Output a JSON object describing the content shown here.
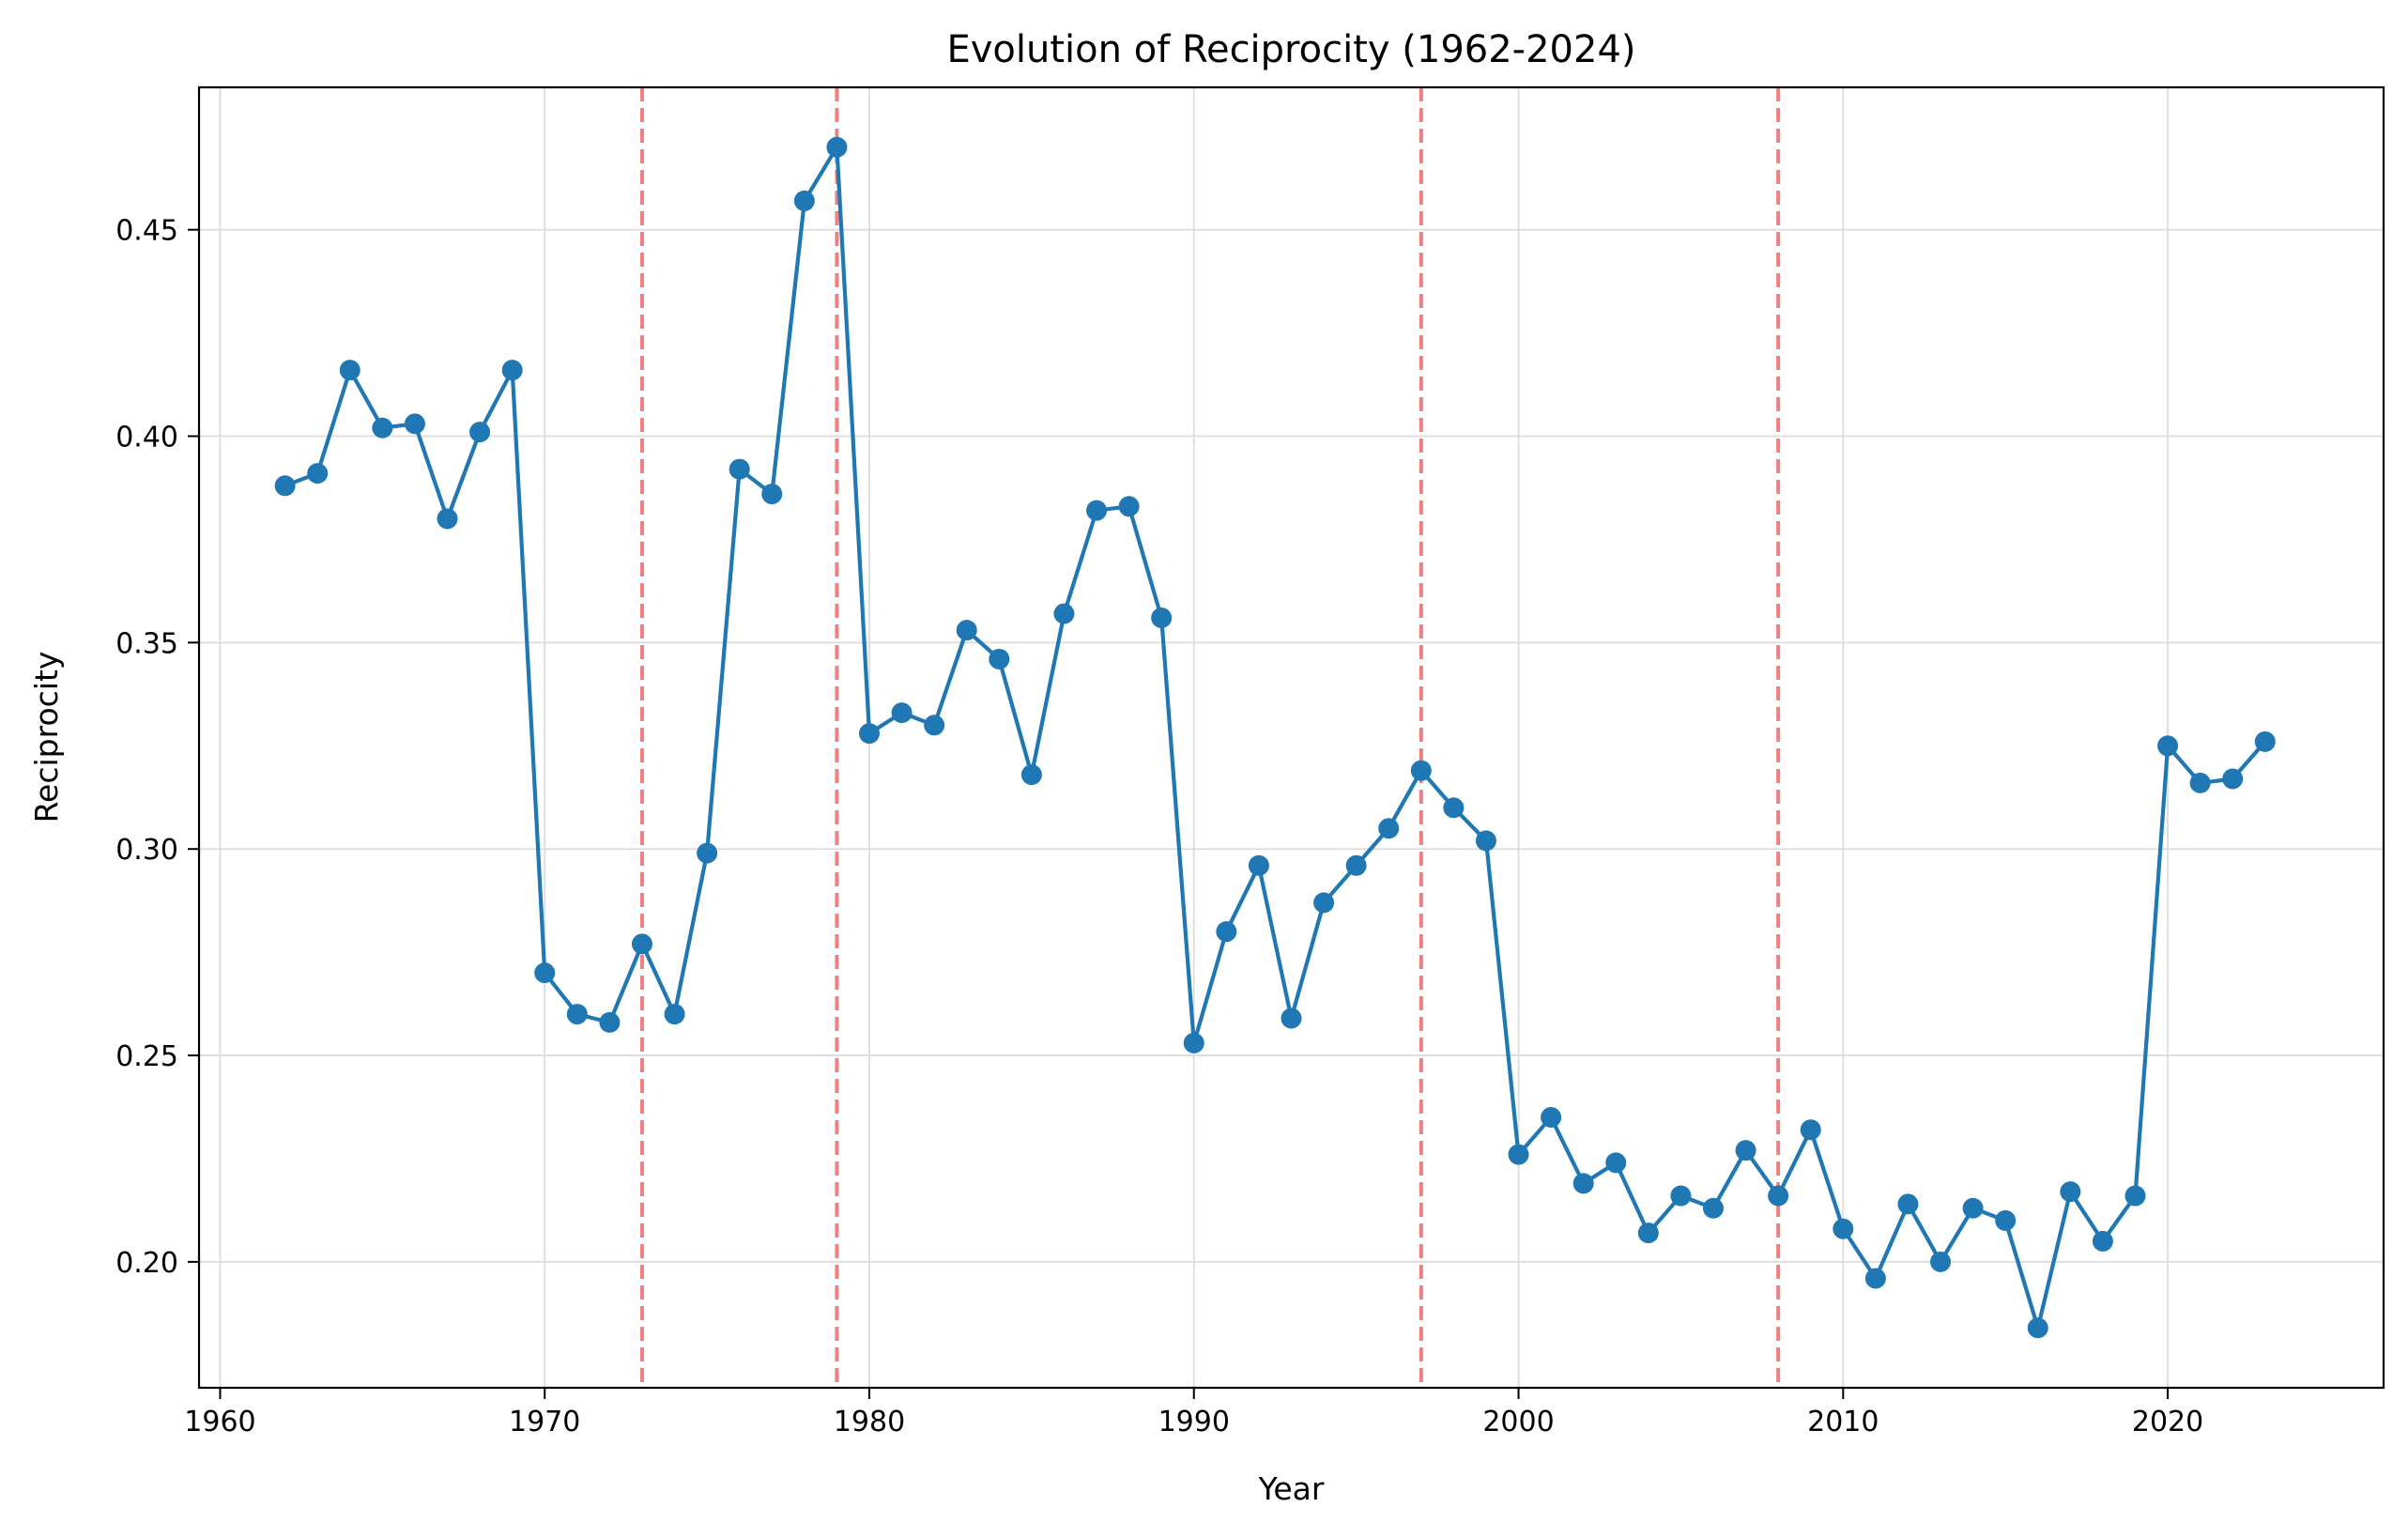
{
  "chart_data": {
    "type": "line",
    "title": "Evolution of Reciprocity (1962-2024)",
    "xlabel": "Year",
    "ylabel": "Reciprocity",
    "xlim": [
      1959.35,
      2026.65
    ],
    "ylim": [
      0.1695,
      0.4845
    ],
    "x_ticks": [
      1960,
      1970,
      1980,
      1990,
      2000,
      2010,
      2020
    ],
    "y_ticks": [
      0.2,
      0.25,
      0.3,
      0.35,
      0.4,
      0.45
    ],
    "x_tick_labels": [
      "1960",
      "1970",
      "1980",
      "1990",
      "2000",
      "2010",
      "2020"
    ],
    "y_tick_labels": [
      "0.20",
      "0.25",
      "0.30",
      "0.35",
      "0.40",
      "0.45"
    ],
    "grid": true,
    "line_color": "#1f77b4",
    "reference_line_color": "#f08080",
    "reference_lines_x": [
      1973,
      1979,
      1997,
      2008
    ],
    "series": [
      {
        "x": [
          1962,
          1963,
          1964,
          1965,
          1966,
          1967,
          1968,
          1969,
          1970,
          1971,
          1972,
          1973,
          1974,
          1975,
          1976,
          1977,
          1978,
          1979,
          1980,
          1981,
          1982,
          1983,
          1984,
          1985,
          1986,
          1987,
          1988,
          1989,
          1990,
          1991,
          1992,
          1993,
          1994,
          1995,
          1996,
          1997,
          1998,
          1999,
          2000,
          2001,
          2002,
          2003,
          2004,
          2005,
          2006,
          2007,
          2008,
          2009,
          2010,
          2011,
          2012,
          2013,
          2014,
          2015,
          2016,
          2017,
          2018,
          2019,
          2020,
          2021,
          2022,
          2023
        ],
        "values": [
          0.388,
          0.391,
          0.416,
          0.402,
          0.403,
          0.38,
          0.401,
          0.416,
          0.27,
          0.26,
          0.258,
          0.277,
          0.26,
          0.299,
          0.392,
          0.386,
          0.457,
          0.47,
          0.328,
          0.333,
          0.33,
          0.353,
          0.346,
          0.318,
          0.357,
          0.382,
          0.383,
          0.356,
          0.253,
          0.28,
          0.296,
          0.259,
          0.287,
          0.296,
          0.305,
          0.319,
          0.31,
          0.302,
          0.226,
          0.235,
          0.219,
          0.224,
          0.207,
          0.216,
          0.213,
          0.227,
          0.216,
          0.232,
          0.208,
          0.196,
          0.214,
          0.2,
          0.213,
          0.21,
          0.184,
          0.217,
          0.205,
          0.216,
          0.325,
          0.316,
          0.317,
          0.326
        ]
      }
    ]
  }
}
